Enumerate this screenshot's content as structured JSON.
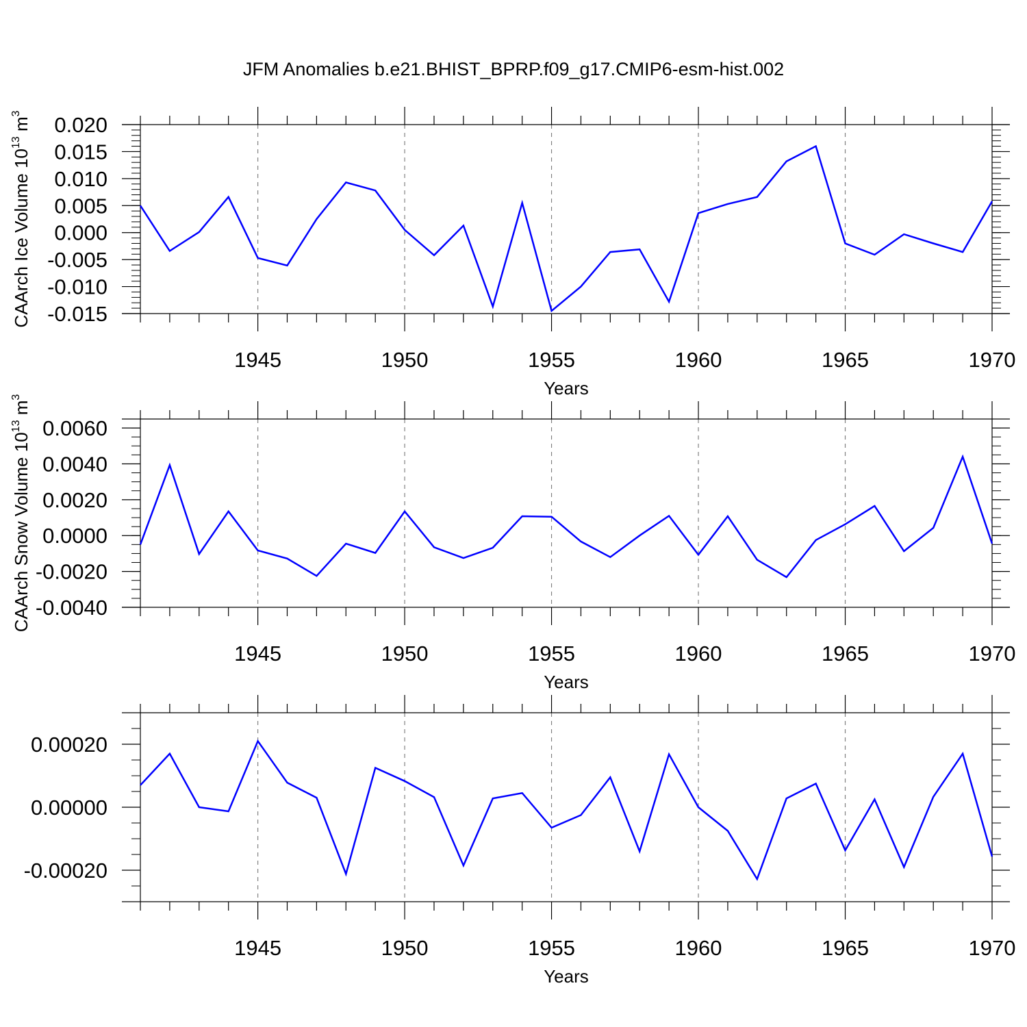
{
  "figure": {
    "title": "JFM Anomalies b.e21.BHIST_BPRP.f09_g17.CMIP6-esm-hist.002",
    "colors": {
      "line": "#0000ff",
      "axis": "#000000",
      "grid": "#808080"
    }
  },
  "chart_data": [
    {
      "type": "line",
      "title": "JFM Anomalies b.e21.BHIST_BPRP.f09_g17.CMIP6-esm-hist.002",
      "xlabel": "Years",
      "ylabel": "CAArch Ice Volume 10",
      "ylabel_sup": "13",
      "ylabel_unit": "m",
      "ylabel_unit_sup": "3",
      "xlim": [
        1941,
        1970
      ],
      "ylim": [
        -0.015,
        0.02
      ],
      "y_decimals": 3,
      "yticks": [
        -0.015,
        -0.01,
        -0.005,
        0.0,
        0.005,
        0.01,
        0.015,
        0.02
      ],
      "y_minor_step": 0.001,
      "xticks": [
        1945,
        1950,
        1955,
        1960,
        1965,
        1970
      ],
      "x_grid": "dashed",
      "series": [
        {
          "x": [
            1941,
            1942,
            1943,
            1944,
            1945,
            1946,
            1947,
            1948,
            1949,
            1950,
            1951,
            1952,
            1953,
            1954,
            1955,
            1956,
            1957,
            1958,
            1959,
            1960,
            1961,
            1962,
            1963,
            1964,
            1965,
            1966,
            1967,
            1968,
            1969,
            1970
          ],
          "values": [
            0.005,
            -0.0034,
            0.0001,
            0.0066,
            -0.0047,
            -0.0061,
            0.0025,
            0.0093,
            0.0078,
            0.0005,
            -0.0042,
            0.0013,
            -0.0137,
            0.0055,
            -0.0145,
            -0.01,
            -0.0036,
            -0.0031,
            -0.0128,
            0.0036,
            0.0053,
            0.0066,
            0.0132,
            0.016,
            -0.002,
            -0.0041,
            -0.0003,
            -0.002,
            -0.0036,
            0.0058
          ]
        }
      ]
    },
    {
      "type": "line",
      "xlabel": "Years",
      "ylabel": "CAArch Snow Volume 10",
      "ylabel_sup": "13",
      "ylabel_unit": "m",
      "ylabel_unit_sup": "3",
      "xlim": [
        1941,
        1970
      ],
      "ylim": [
        -0.004,
        0.0065
      ],
      "y_decimals": 4,
      "yticks": [
        -0.004,
        -0.002,
        0.0,
        0.002,
        0.004,
        0.006
      ],
      "y_minor_step": 0.0005,
      "xticks": [
        1945,
        1950,
        1955,
        1960,
        1965,
        1970
      ],
      "x_grid": "dashed",
      "series": [
        {
          "x": [
            1941,
            1942,
            1943,
            1944,
            1945,
            1946,
            1947,
            1948,
            1949,
            1950,
            1951,
            1952,
            1953,
            1954,
            1955,
            1956,
            1957,
            1958,
            1959,
            1960,
            1961,
            1962,
            1963,
            1964,
            1965,
            1966,
            1967,
            1968,
            1969,
            1970
          ],
          "values": [
            -0.0005,
            0.00393,
            -0.00103,
            0.00135,
            -0.00083,
            -0.00128,
            -0.00225,
            -0.00045,
            -0.00097,
            0.00135,
            -0.00065,
            -0.00125,
            -0.00068,
            0.00108,
            0.00105,
            -0.00033,
            -0.0012,
            0.0,
            0.0011,
            -0.00107,
            0.00108,
            -0.00135,
            -0.00232,
            -0.00025,
            0.00063,
            0.00165,
            -0.00087,
            0.00043,
            0.0044,
            -0.00045
          ]
        }
      ]
    },
    {
      "type": "line",
      "xlabel": "Years",
      "ylabel": "",
      "xlim": [
        1941,
        1970
      ],
      "ylim": [
        -0.0003,
        0.0003
      ],
      "y_decimals": 5,
      "yticks": [
        -0.0002,
        0.0,
        0.0002
      ],
      "y_minor_step": 5e-05,
      "xticks": [
        1945,
        1950,
        1955,
        1960,
        1965,
        1970
      ],
      "x_grid": "dashed",
      "series": [
        {
          "x": [
            1941,
            1942,
            1943,
            1944,
            1945,
            1946,
            1947,
            1948,
            1949,
            1950,
            1951,
            1952,
            1953,
            1954,
            1955,
            1956,
            1957,
            1958,
            1959,
            1960,
            1961,
            1962,
            1963,
            1964,
            1965,
            1966,
            1967,
            1968,
            1969,
            1970
          ],
          "values": [
            7e-05,
            0.00017,
            0.0,
            -1.3e-05,
            0.00021,
            7.8e-05,
            3e-05,
            -0.000212,
            0.000125,
            8.3e-05,
            3.2e-05,
            -0.000185,
            2.8e-05,
            4.5e-05,
            -6.5e-05,
            -2.5e-05,
            9.5e-05,
            -0.00014,
            0.000168,
            0.0,
            -7.5e-05,
            -0.000228,
            2.8e-05,
            7.5e-05,
            -0.000137,
            2.5e-05,
            -0.00019,
            3.3e-05,
            0.00017,
            -0.000157
          ]
        }
      ]
    }
  ]
}
